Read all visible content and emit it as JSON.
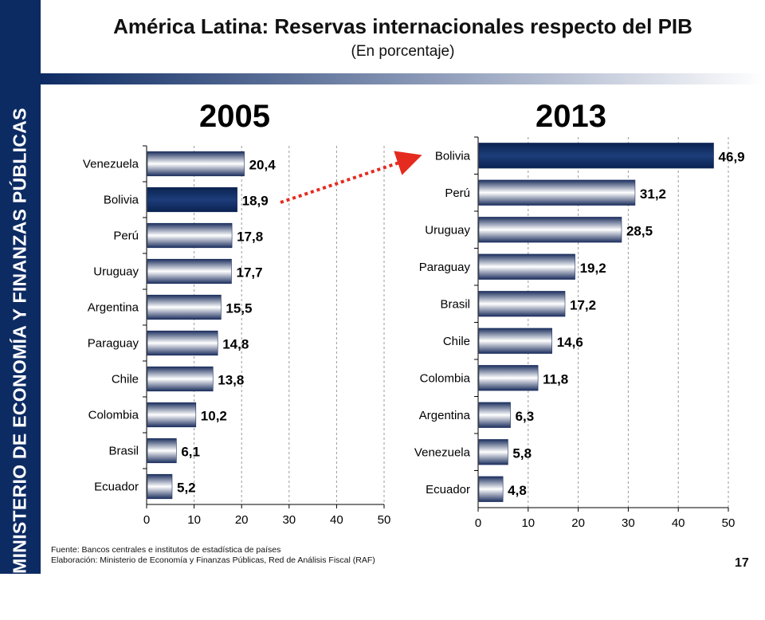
{
  "sidebar": {
    "text": "MINISTERIO DE ECONOMÍA Y FINANZAS PÚBLICAS"
  },
  "header": {
    "title": "América Latina: Reservas internacionales respecto del PIB",
    "subtitle": "(En porcentaje)"
  },
  "footer": {
    "source": "Fuente: Bancos centrales e institutos de estadística de países",
    "elaboration": "Elaboración: Ministerio de Economía y Finanzas Públicas, Red de Análisis Fiscal (RAF)",
    "page": "17"
  },
  "colors": {
    "sidebar": "#0d2b63",
    "highlight_bar": "#0d2b63",
    "bar_gradient": [
      "#1c2f5e",
      "#ffffff"
    ],
    "arrow": "#e52b20"
  },
  "chart_data": [
    {
      "type": "bar",
      "orientation": "horizontal",
      "title": "2005",
      "categories": [
        "Venezuela",
        "Bolivia",
        "Perú",
        "Uruguay",
        "Argentina",
        "Paraguay",
        "Chile",
        "Colombia",
        "Brasil",
        "Ecuador"
      ],
      "values": [
        20.4,
        18.9,
        17.8,
        17.7,
        15.5,
        14.8,
        13.8,
        10.2,
        6.1,
        5.2
      ],
      "value_labels": [
        "20,4",
        "18,9",
        "17,8",
        "17,7",
        "15,5",
        "14,8",
        "13,8",
        "10,2",
        "6,1",
        "5,2"
      ],
      "highlight": "Bolivia",
      "xlim": [
        0,
        50
      ],
      "xticks": [
        0,
        10,
        20,
        30,
        40,
        50
      ],
      "grid": true
    },
    {
      "type": "bar",
      "orientation": "horizontal",
      "title": "2013",
      "categories": [
        "Bolivia",
        "Perú",
        "Uruguay",
        "Paraguay",
        "Brasil",
        "Chile",
        "Colombia",
        "Argentina",
        "Venezuela",
        "Ecuador"
      ],
      "values": [
        46.9,
        31.2,
        28.5,
        19.2,
        17.2,
        14.6,
        11.8,
        6.3,
        5.8,
        4.8
      ],
      "value_labels": [
        "46,9",
        "31,2",
        "28,5",
        "19,2",
        "17,2",
        "14,6",
        "11,8",
        "6,3",
        "5,8",
        "4,8"
      ],
      "highlight": "Bolivia",
      "xlim": [
        0,
        50
      ],
      "xticks": [
        0,
        10,
        20,
        30,
        40,
        50
      ],
      "grid": true
    }
  ]
}
